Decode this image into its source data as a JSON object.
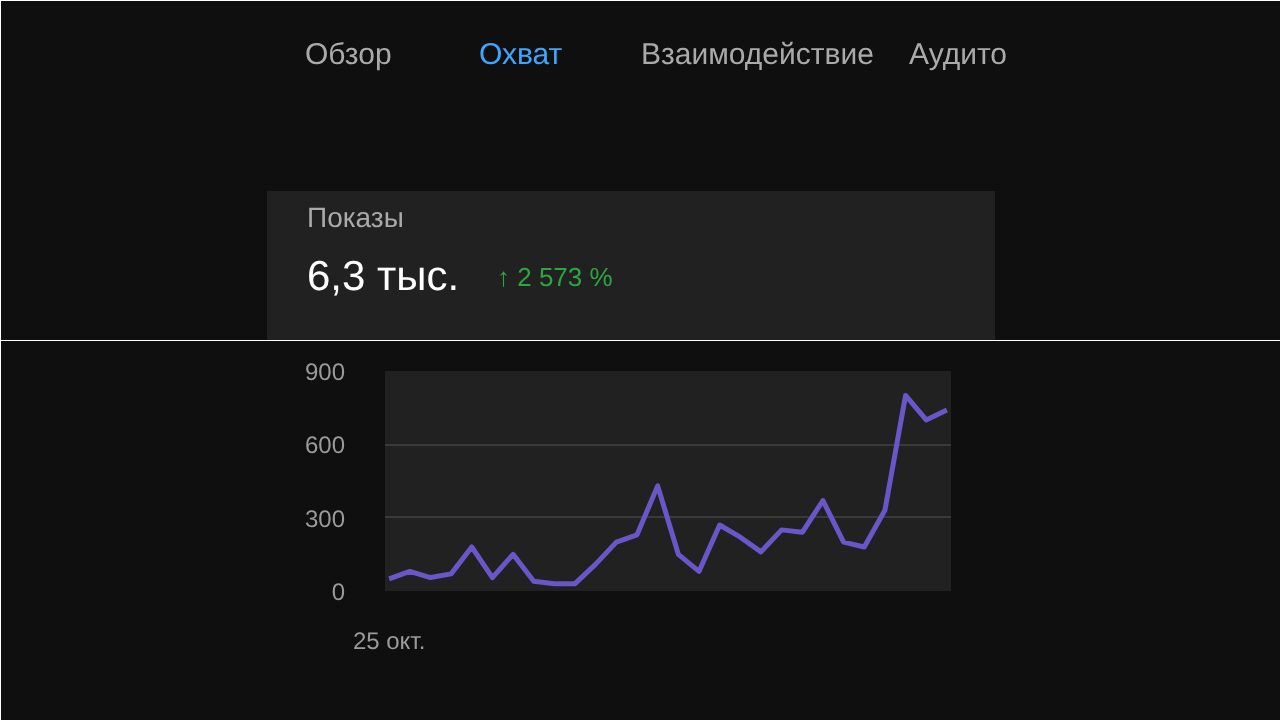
{
  "chart_data": {
    "type": "line",
    "title": "Показы",
    "subtitle": "6,3 тыс.",
    "annotations": [
      "Обзор",
      "Охват",
      "Взаимодействие",
      "Аудито",
      "↑ 2 573 %"
    ],
    "categories": [
      "25 окт.",
      null,
      null,
      null,
      null,
      null,
      null,
      null,
      null,
      null,
      null,
      null,
      null,
      null,
      null,
      null,
      null,
      null,
      null,
      null,
      null,
      null,
      null,
      null,
      null,
      null,
      null,
      null
    ],
    "series": [
      {
        "color": "#6a56c8",
        "values": [
          50,
          80,
          55,
          70,
          180,
          55,
          150,
          40,
          30,
          30,
          110,
          200,
          230,
          430,
          150,
          80,
          270,
          220,
          160,
          250,
          240,
          370,
          200,
          180,
          330,
          800,
          700,
          740
        ]
      }
    ],
    "ylim": [
      0,
      900
    ],
    "yticks": [
      0,
      300,
      600,
      900
    ],
    "grid": "y",
    "marker": "none",
    "line_style": "solid"
  }
}
